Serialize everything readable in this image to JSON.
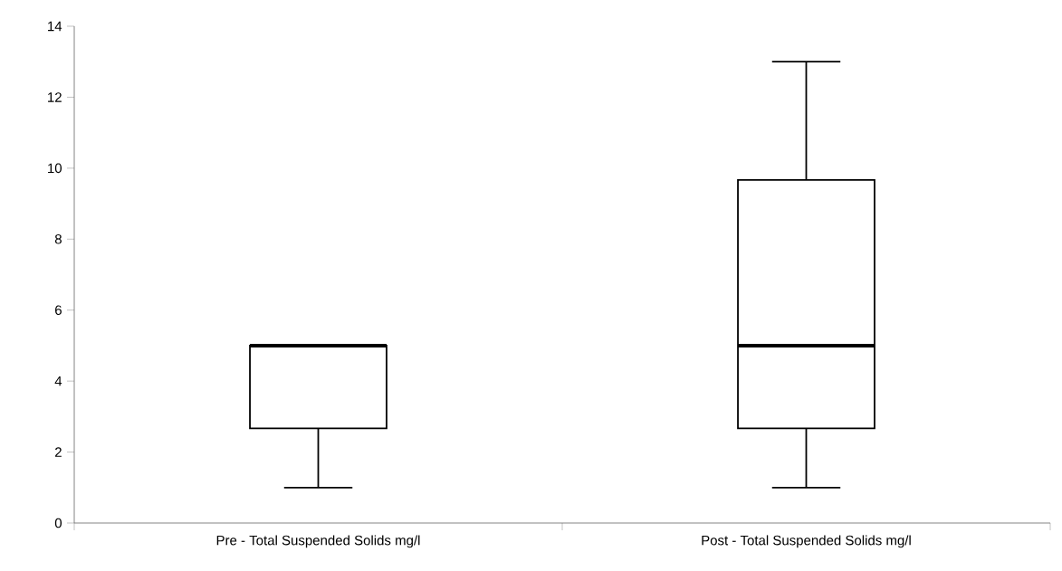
{
  "chart_data": {
    "type": "box",
    "categories": [
      "Pre - Total Suspended Solids mg/l",
      "Post - Total Suspended Solids mg/l"
    ],
    "boxes": [
      {
        "low": 1,
        "q1": 2.67,
        "median": 5,
        "q3": 5,
        "high": 5
      },
      {
        "low": 1,
        "q1": 2.67,
        "median": 5,
        "q3": 9.67,
        "high": 13
      }
    ],
    "ylim": [
      0,
      14
    ],
    "yticks": [
      0,
      2,
      4,
      6,
      8,
      10,
      12,
      14
    ]
  }
}
